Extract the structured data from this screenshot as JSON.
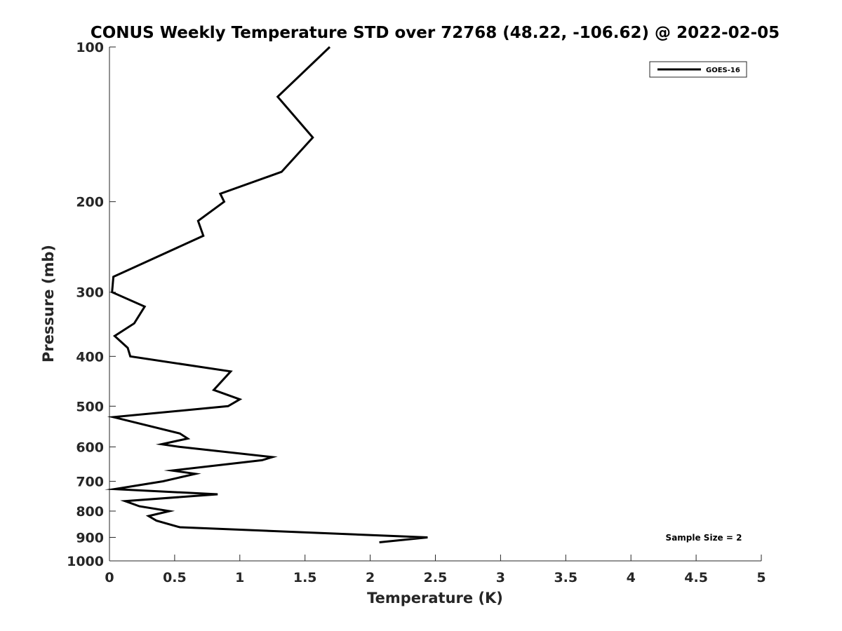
{
  "chart_data": {
    "type": "line",
    "title": "CONUS Weekly Temperature STD over 72768 (48.22, -106.62) @ 2022-02-05",
    "xlabel": "Temperature (K)",
    "ylabel": "Pressure (mb)",
    "xlim": [
      0,
      5
    ],
    "ylim": [
      1000,
      100
    ],
    "y_scale": "log",
    "y_reversed": true,
    "grid": false,
    "x_ticks": [
      "0",
      "0.5",
      "1",
      "1.5",
      "2",
      "2.5",
      "3",
      "3.5",
      "4",
      "4.5",
      "5"
    ],
    "y_ticks": [
      "100",
      "200",
      "300",
      "400",
      "500",
      "600",
      "700",
      "800",
      "900",
      "1000"
    ],
    "legend": {
      "position": "top-right",
      "entries": [
        "GOES-16"
      ]
    },
    "annotation": "Sample Size = 2",
    "series": [
      {
        "name": "GOES-16",
        "color": "#000000",
        "points": [
          [
            1.69,
            100
          ],
          [
            1.29,
            125
          ],
          [
            1.56,
            150
          ],
          [
            1.32,
            175
          ],
          [
            0.85,
            193
          ],
          [
            0.88,
            200
          ],
          [
            0.68,
            218
          ],
          [
            0.72,
            233
          ],
          [
            0.03,
            280
          ],
          [
            0.02,
            300
          ],
          [
            0.27,
            320
          ],
          [
            0.19,
            345
          ],
          [
            0.04,
            365
          ],
          [
            0.14,
            385
          ],
          [
            0.16,
            400
          ],
          [
            0.93,
            428
          ],
          [
            0.8,
            465
          ],
          [
            1.0,
            485
          ],
          [
            0.91,
            500
          ],
          [
            0.03,
            525
          ],
          [
            0.54,
            565
          ],
          [
            0.6,
            578
          ],
          [
            0.4,
            593
          ],
          [
            0.54,
            600
          ],
          [
            1.25,
            628
          ],
          [
            1.17,
            637
          ],
          [
            0.48,
            667
          ],
          [
            0.66,
            677
          ],
          [
            0.41,
            700
          ],
          [
            0.04,
            725
          ],
          [
            0.83,
            742
          ],
          [
            0.12,
            765
          ],
          [
            0.23,
            783
          ],
          [
            0.46,
            800
          ],
          [
            0.3,
            818
          ],
          [
            0.36,
            835
          ],
          [
            0.54,
            860
          ],
          [
            2.44,
            900
          ],
          [
            2.07,
            920
          ]
        ]
      }
    ]
  }
}
